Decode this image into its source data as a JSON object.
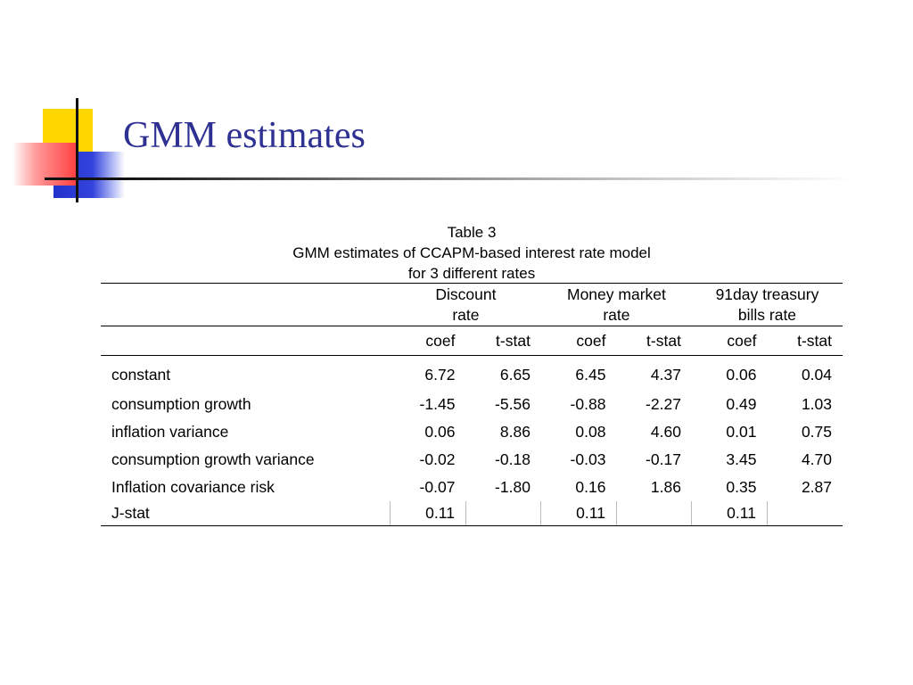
{
  "slide": {
    "title": "GMM estimates"
  },
  "table": {
    "caption": [
      "Table 3",
      "GMM estimates of CCAPM-based interest rate model",
      "for 3 different rates"
    ],
    "groups": [
      {
        "line1": "Discount",
        "line2": "rate"
      },
      {
        "line1": "Money market",
        "line2": "rate"
      },
      {
        "line1": "91day treasury",
        "line2": "bills rate"
      }
    ],
    "subheaders": [
      "coef",
      "t-stat",
      "coef",
      "t-stat",
      "coef",
      "t-stat"
    ],
    "rows": [
      {
        "label": "constant",
        "values": [
          "6.72",
          "6.65",
          "6.45",
          "4.37",
          "0.06",
          "0.04"
        ]
      },
      {
        "label": "consumption growth",
        "values": [
          "-1.45",
          "-5.56",
          "-0.88",
          "-2.27",
          "0.49",
          "1.03"
        ]
      },
      {
        "label": "inflation variance",
        "values": [
          "0.06",
          "8.86",
          "0.08",
          "4.60",
          "0.01",
          "0.75"
        ]
      },
      {
        "label": "consumption growth variance",
        "values": [
          "-0.02",
          "-0.18",
          "-0.03",
          "-0.17",
          "3.45",
          "4.70"
        ]
      },
      {
        "label": "Inflation covariance risk",
        "values": [
          "-0.07",
          "-1.80",
          "0.16",
          "1.86",
          "0.35",
          "2.87"
        ]
      },
      {
        "label": "J-stat",
        "values": [
          "0.11",
          "",
          "0.11",
          "",
          "0.11",
          ""
        ]
      }
    ]
  }
}
